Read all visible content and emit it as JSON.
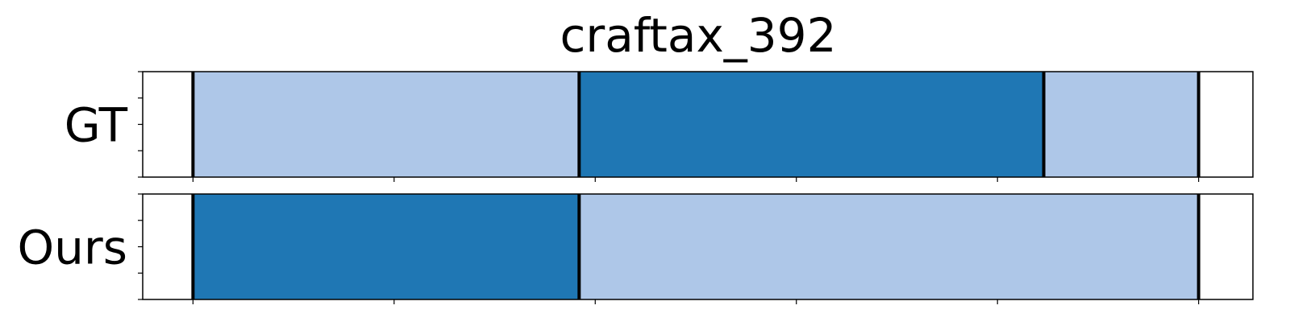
{
  "chart_data": {
    "type": "segmentation",
    "title": "craftax_392",
    "x_range": [
      -25,
      527
    ],
    "colors": {
      "light": "#aec7e8",
      "dark": "#1f77b4",
      "boundary": "#000000"
    },
    "rows": [
      {
        "label": "GT",
        "segments": [
          {
            "start": 0,
            "end": 192,
            "color": "light"
          },
          {
            "start": 192,
            "end": 423,
            "color": "dark"
          },
          {
            "start": 423,
            "end": 500,
            "color": "light"
          }
        ],
        "boundaries": [
          0,
          192,
          423,
          500
        ]
      },
      {
        "label": "Ours",
        "segments": [
          {
            "start": 0,
            "end": 192,
            "color": "dark"
          },
          {
            "start": 192,
            "end": 500,
            "color": "light"
          }
        ],
        "boundaries": [
          0,
          192,
          500
        ]
      }
    ],
    "x_ticks": [
      0,
      100,
      200,
      300,
      400,
      500
    ],
    "y_ticks_per_row": 5
  }
}
